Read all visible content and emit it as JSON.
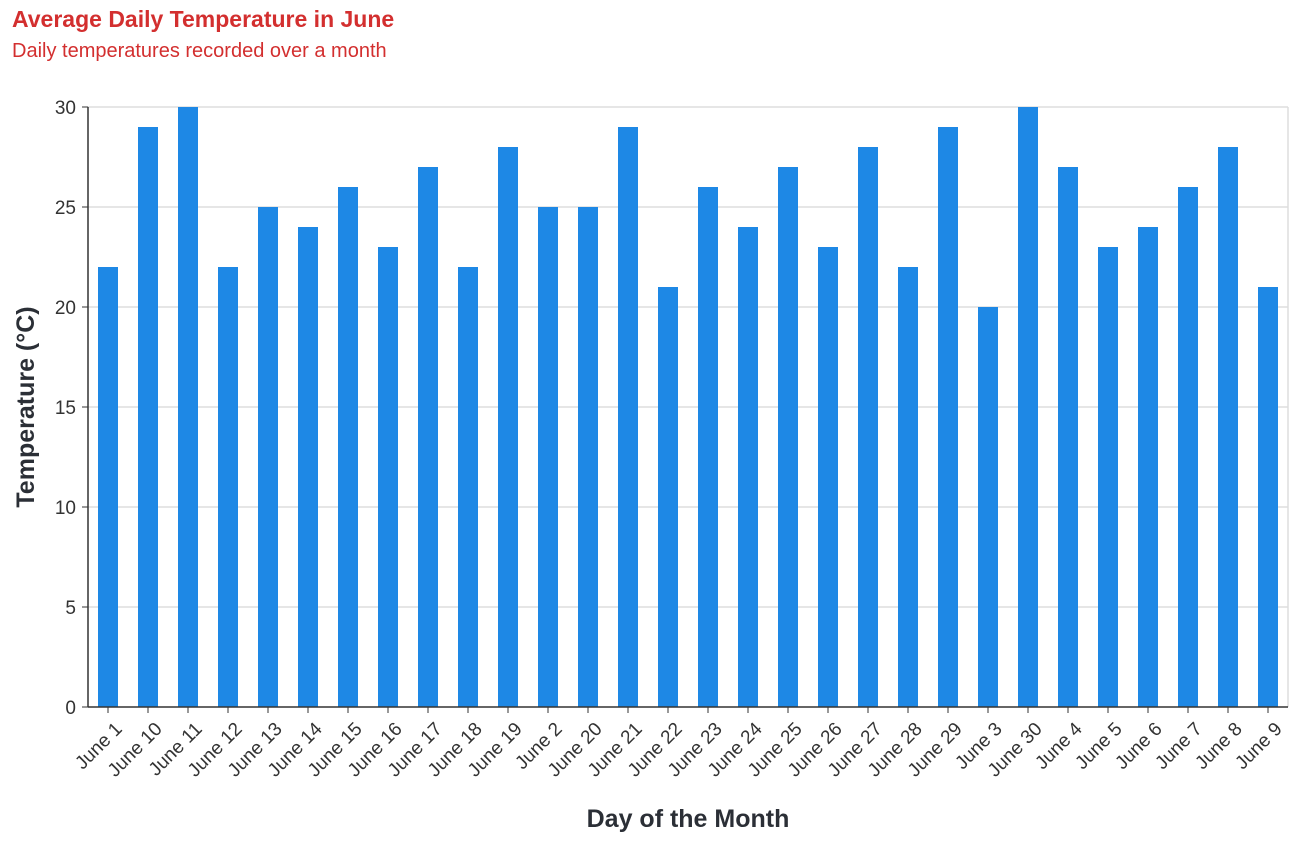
{
  "title": "Average Daily Temperature in June",
  "subtitle": "Daily temperatures recorded over a month",
  "colors": {
    "title": "#d32f2f",
    "bar": "#1e88e5",
    "grid": "#dddddd",
    "axis": "#333333"
  },
  "chart_data": {
    "type": "bar",
    "title": "Average Daily Temperature in June",
    "subtitle": "Daily temperatures recorded over a month",
    "xlabel": "Day of the Month",
    "ylabel": "Temperature (°C)",
    "ylim": [
      0,
      30
    ],
    "yticks": [
      0,
      5,
      10,
      15,
      20,
      25,
      30
    ],
    "grid": true,
    "categories": [
      "June 1",
      "June 10",
      "June 11",
      "June 12",
      "June 13",
      "June 14",
      "June 15",
      "June 16",
      "June 17",
      "June 18",
      "June 19",
      "June 2",
      "June 20",
      "June 21",
      "June 22",
      "June 23",
      "June 24",
      "June 25",
      "June 26",
      "June 27",
      "June 28",
      "June 29",
      "June 3",
      "June 30",
      "June 4",
      "June 5",
      "June 6",
      "June 7",
      "June 8",
      "June 9"
    ],
    "values": [
      22,
      29,
      30,
      22,
      25,
      24,
      26,
      23,
      27,
      22,
      28,
      25,
      25,
      29,
      21,
      26,
      24,
      27,
      23,
      28,
      22,
      29,
      20,
      30,
      27,
      23,
      24,
      26,
      28,
      21
    ]
  }
}
